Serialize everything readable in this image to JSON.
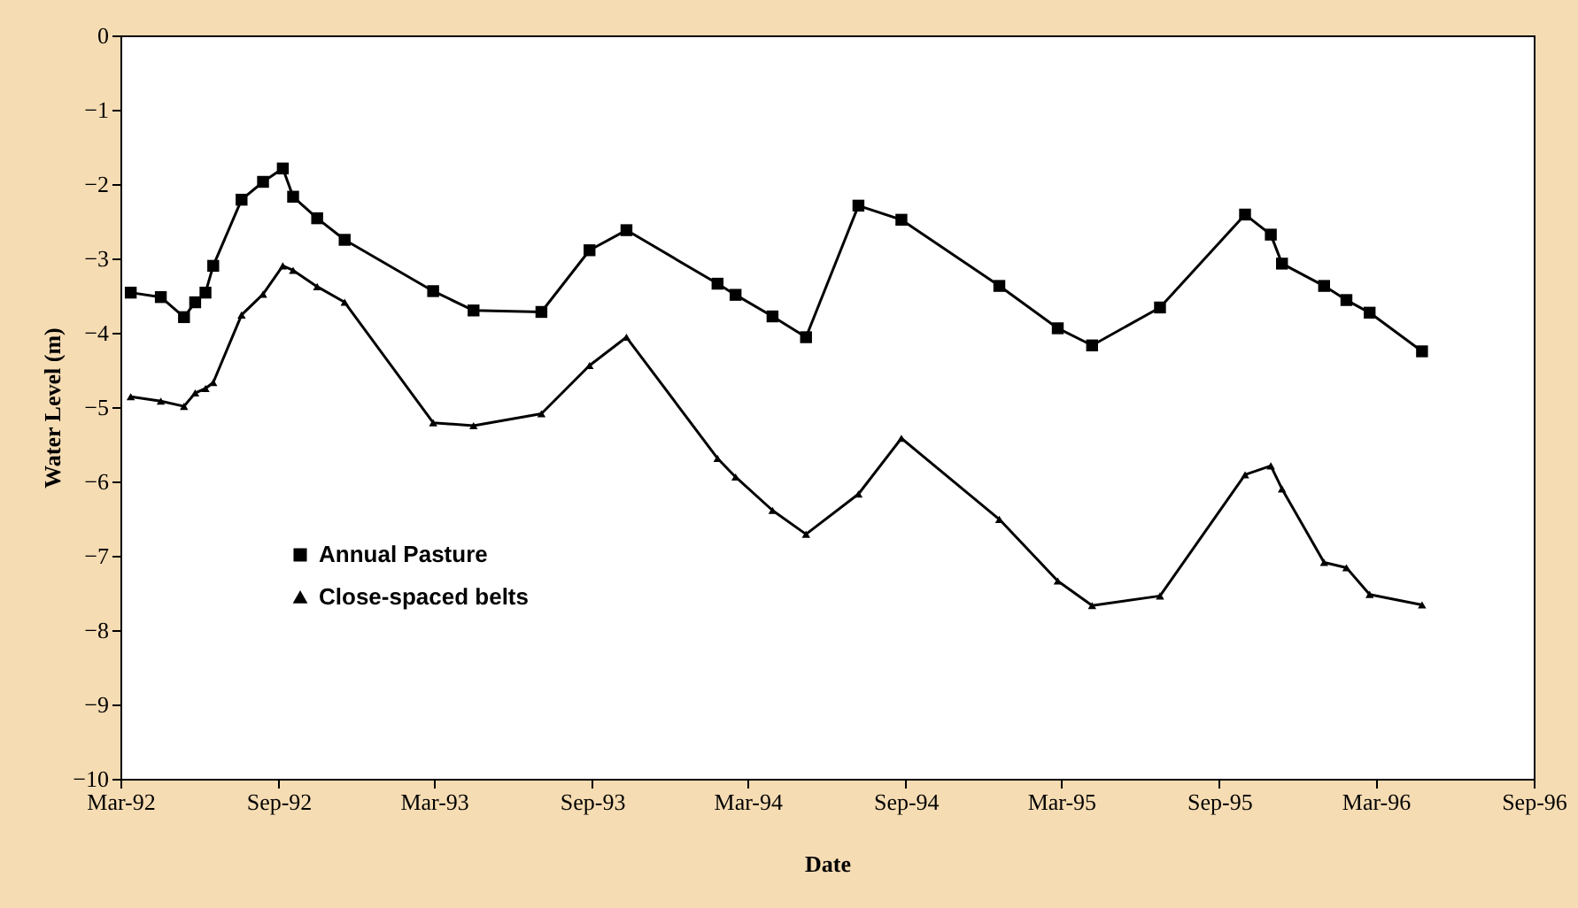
{
  "chart_data": {
    "type": "line",
    "xlabel": "Date",
    "ylabel": "Water Level (m)",
    "x": [
      "1992-03-13",
      "1992-04-17",
      "1992-05-14",
      "1992-05-27",
      "1992-06-08",
      "1992-06-17",
      "1992-07-20",
      "1992-08-14",
      "1992-09-06",
      "1992-09-18",
      "1992-10-16",
      "1992-11-17",
      "1993-02-28",
      "1993-04-16",
      "1993-07-04",
      "1993-08-29",
      "1993-10-11",
      "1994-01-25",
      "1994-02-15",
      "1994-03-30",
      "1994-05-08",
      "1994-07-08",
      "1994-08-27",
      "1994-12-19",
      "1995-02-25",
      "1995-04-06",
      "1995-06-24",
      "1995-10-01",
      "1995-10-31",
      "1995-11-13",
      "1996-01-01",
      "1996-01-27",
      "1996-02-23",
      "1996-04-24"
    ],
    "series": [
      {
        "name": "Annual Pasture",
        "color": "#000000",
        "marker": "square",
        "values": [
          -3.46,
          -3.52,
          -3.79,
          -3.59,
          -3.46,
          -3.1,
          -2.21,
          -1.97,
          -1.79,
          -2.17,
          -2.46,
          -2.75,
          -3.44,
          -3.7,
          -3.72,
          -2.89,
          -2.62,
          -3.34,
          -3.49,
          -3.78,
          -4.06,
          -2.29,
          -2.48,
          -3.37,
          -3.94,
          -4.17,
          -3.66,
          -2.41,
          -2.68,
          -3.07,
          -3.37,
          -3.56,
          -3.73,
          -4.25
        ]
      },
      {
        "name": "Close-spaced belts",
        "color": "#000000",
        "marker": "triangle",
        "values": [
          -4.86,
          -4.92,
          -4.99,
          -4.81,
          -4.75,
          -4.67,
          -3.76,
          -3.48,
          -3.1,
          -3.16,
          -3.38,
          -3.59,
          -5.21,
          -5.25,
          -5.09,
          -4.44,
          -4.06,
          -5.69,
          -5.94,
          -6.39,
          -6.71,
          -6.17,
          -5.42,
          -6.51,
          -7.34,
          -7.67,
          -7.54,
          -5.91,
          -5.79,
          -6.1,
          -7.09,
          -7.16,
          -7.52,
          -7.66
        ]
      }
    ],
    "xlim": [
      "1992-03-01",
      "1996-09-01"
    ],
    "xticks": [
      {
        "value": "1992-03-01",
        "label": "Mar-92"
      },
      {
        "value": "1992-09-01",
        "label": "Sep-92"
      },
      {
        "value": "1993-03-01",
        "label": "Mar-93"
      },
      {
        "value": "1993-09-01",
        "label": "Sep-93"
      },
      {
        "value": "1994-03-01",
        "label": "Mar-94"
      },
      {
        "value": "1994-09-01",
        "label": "Sep-94"
      },
      {
        "value": "1995-03-01",
        "label": "Mar-95"
      },
      {
        "value": "1995-09-01",
        "label": "Sep-95"
      },
      {
        "value": "1996-03-01",
        "label": "Mar-96"
      },
      {
        "value": "1996-09-01",
        "label": "Sep-96"
      }
    ],
    "ylim": [
      -10,
      0
    ],
    "yticks": [
      0,
      -1,
      -2,
      -3,
      -4,
      -5,
      -6,
      -7,
      -8,
      -9,
      -10
    ],
    "grid": false,
    "legend": "bottom left",
    "line_style": "solid"
  }
}
